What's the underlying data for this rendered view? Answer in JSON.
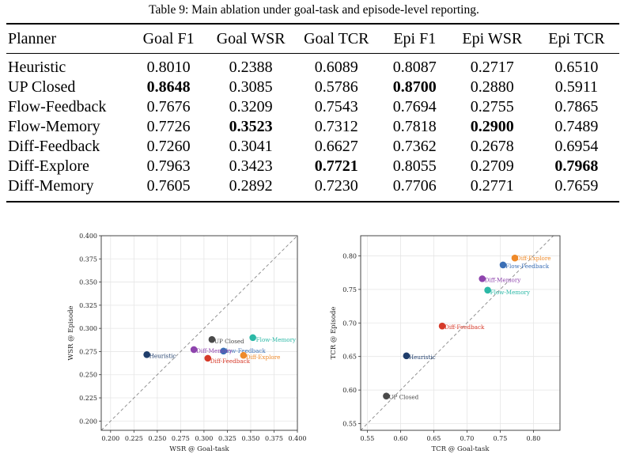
{
  "caption": "Table 9: Main ablation under goal-task and episode-level reporting.",
  "table": {
    "headers": [
      "Planner",
      "Goal F1",
      "Goal WSR",
      "Goal TCR",
      "Epi F1",
      "Epi WSR",
      "Epi TCR"
    ],
    "rows": [
      {
        "cells": [
          "Heuristic",
          "0.8010",
          "0.2388",
          "0.6089",
          "0.8087",
          "0.2717",
          "0.6510"
        ],
        "bold": []
      },
      {
        "cells": [
          "UP Closed",
          "0.8648",
          "0.3085",
          "0.5786",
          "0.8700",
          "0.2880",
          "0.5911"
        ],
        "bold": [
          1,
          4
        ]
      },
      {
        "cells": [
          "Flow-Feedback",
          "0.7676",
          "0.3209",
          "0.7543",
          "0.7694",
          "0.2755",
          "0.7865"
        ],
        "bold": []
      },
      {
        "cells": [
          "Flow-Memory",
          "0.7726",
          "0.3523",
          "0.7312",
          "0.7818",
          "0.2900",
          "0.7489"
        ],
        "bold": [
          2,
          5
        ]
      },
      {
        "cells": [
          "Diff-Feedback",
          "0.7260",
          "0.3041",
          "0.6627",
          "0.7362",
          "0.2678",
          "0.6954"
        ],
        "bold": []
      },
      {
        "cells": [
          "Diff-Explore",
          "0.7963",
          "0.3423",
          "0.7721",
          "0.8055",
          "0.2709",
          "0.7968"
        ],
        "bold": [
          3,
          6
        ]
      },
      {
        "cells": [
          "Diff-Memory",
          "0.7605",
          "0.2892",
          "0.7230",
          "0.7706",
          "0.2771",
          "0.7659"
        ],
        "bold": []
      }
    ]
  },
  "chart_data": [
    {
      "type": "scatter",
      "xlabel": "WSR @ Goal-task",
      "ylabel": "WSR @ Episode",
      "xlim": [
        0.19,
        0.4
      ],
      "ylim": [
        0.19,
        0.4
      ],
      "xticks": [
        "0.200",
        "0.225",
        "0.250",
        "0.275",
        "0.300",
        "0.325",
        "0.350",
        "0.375",
        "0.400"
      ],
      "yticks": [
        "0.200",
        "0.225",
        "0.250",
        "0.275",
        "0.300",
        "0.325",
        "0.350",
        "0.375",
        "0.400"
      ],
      "diagonal": true,
      "points": [
        {
          "label": "Heuristic",
          "x": 0.2388,
          "y": 0.2717,
          "color": "#1f3d6b"
        },
        {
          "label": "UP Closed",
          "x": 0.3085,
          "y": 0.288,
          "color": "#4a4a4a"
        },
        {
          "label": "Flow-Feedback",
          "x": 0.3209,
          "y": 0.2755,
          "color": "#3b6fb6"
        },
        {
          "label": "Flow-Memory",
          "x": 0.3523,
          "y": 0.29,
          "color": "#2bb8a6"
        },
        {
          "label": "Diff-Feedback",
          "x": 0.3041,
          "y": 0.2678,
          "color": "#d63a2a"
        },
        {
          "label": "Diff-Explore",
          "x": 0.3423,
          "y": 0.2709,
          "color": "#ef8a2a"
        },
        {
          "label": "Diff-Memory",
          "x": 0.2892,
          "y": 0.2771,
          "color": "#8e44ad"
        }
      ]
    },
    {
      "type": "scatter",
      "xlabel": "TCR @ Goal-task",
      "ylabel": "TCR @ Episode",
      "xlim": [
        0.54,
        0.84
      ],
      "ylim": [
        0.54,
        0.83
      ],
      "xticks": [
        "0.55",
        "0.60",
        "0.65",
        "0.70",
        "0.75",
        "0.80"
      ],
      "yticks": [
        "0.55",
        "0.60",
        "0.65",
        "0.70",
        "0.75",
        "0.80"
      ],
      "diagonal": true,
      "points": [
        {
          "label": "UP Closed",
          "x": 0.5786,
          "y": 0.5911,
          "color": "#4a4a4a"
        },
        {
          "label": "Heuristic",
          "x": 0.6089,
          "y": 0.651,
          "color": "#1f3d6b"
        },
        {
          "label": "Diff-Feedback",
          "x": 0.6627,
          "y": 0.6954,
          "color": "#d63a2a"
        },
        {
          "label": "Diff-Memory",
          "x": 0.723,
          "y": 0.7659,
          "color": "#8e44ad"
        },
        {
          "label": "Flow-Memory",
          "x": 0.7312,
          "y": 0.7489,
          "color": "#2bb8a6"
        },
        {
          "label": "Flow-Feedback",
          "x": 0.7543,
          "y": 0.7865,
          "color": "#3b6fb6"
        },
        {
          "label": "Diff-Explore",
          "x": 0.7721,
          "y": 0.7968,
          "color": "#ef8a2a"
        }
      ]
    }
  ]
}
